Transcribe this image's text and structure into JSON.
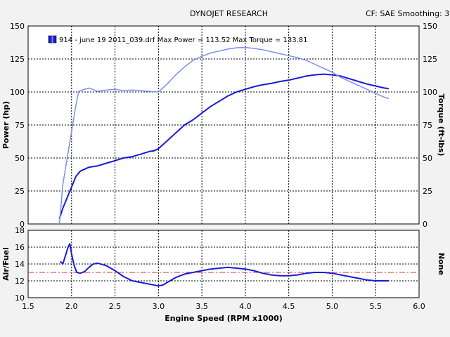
{
  "header": {
    "title": "DYNOJET RESEARCH",
    "settings": "CF: SAE  Smoothing: 3"
  },
  "legend": {
    "text": "914 - june 19 2011_039.drf Max Power = 113.52 Max Torque = 133.81"
  },
  "colors": {
    "background": "#f2f2f2",
    "plot_background": "#ffffff",
    "power_line": "#1a1ad4",
    "torque_line": "#7c8ef0",
    "air_fuel_line": "#1a1ad4",
    "reference_line": "#e03030"
  },
  "chart_data": [
    {
      "type": "line",
      "xlabel": "Engine Speed (RPM x1000)",
      "ylabel": "Power (hp)",
      "y2label": "Torque (ft-lbs)",
      "xlim": [
        1.5,
        6.0
      ],
      "ylim": [
        0,
        150
      ],
      "y2lim": [
        0,
        150
      ],
      "x_ticks": [
        "1.5",
        "2.0",
        "2.5",
        "3.0",
        "3.5",
        "4.0",
        "4.5",
        "5.0",
        "5.5",
        "6.0"
      ],
      "y_ticks": [
        "0",
        "25",
        "50",
        "75",
        "100",
        "125",
        "150"
      ],
      "grid": true,
      "legend_position": "top-left",
      "series": [
        {
          "name": "Max Power = 113.52",
          "axis": "left",
          "x": [
            1.86,
            1.9,
            1.95,
            2.0,
            2.05,
            2.1,
            2.2,
            2.3,
            2.4,
            2.5,
            2.6,
            2.7,
            2.8,
            2.9,
            2.95,
            3.0,
            3.1,
            3.2,
            3.3,
            3.4,
            3.5,
            3.6,
            3.7,
            3.8,
            3.9,
            4.0,
            4.1,
            4.2,
            4.3,
            4.4,
            4.5,
            4.6,
            4.7,
            4.8,
            4.9,
            5.0,
            5.1,
            5.2,
            5.3,
            5.4,
            5.5,
            5.6,
            5.65
          ],
          "values": [
            4,
            12,
            20,
            28,
            36,
            40,
            43,
            44,
            46,
            48,
            50,
            51,
            53,
            55,
            55.5,
            57,
            63,
            69,
            75,
            79,
            84,
            89,
            93,
            97,
            100,
            102,
            104,
            105.5,
            106.5,
            108,
            109,
            110.5,
            112,
            113,
            113.5,
            113,
            112,
            110,
            108,
            106,
            104.5,
            103,
            102.5
          ]
        },
        {
          "name": "Max Torque = 133.81",
          "axis": "right",
          "x": [
            1.86,
            1.9,
            1.95,
            2.0,
            2.05,
            2.08,
            2.1,
            2.2,
            2.3,
            2.4,
            2.5,
            2.6,
            2.7,
            2.8,
            2.9,
            3.0,
            3.1,
            3.2,
            3.3,
            3.4,
            3.5,
            3.6,
            3.7,
            3.8,
            3.9,
            4.0,
            4.1,
            4.2,
            4.3,
            4.4,
            4.5,
            4.6,
            4.7,
            4.8,
            4.9,
            5.0,
            5.1,
            5.2,
            5.3,
            5.4,
            5.5,
            5.6,
            5.65
          ],
          "values": [
            0,
            30,
            50,
            70,
            90,
            100,
            101,
            103,
            100.5,
            101.5,
            102,
            101,
            101.5,
            101,
            100.5,
            100,
            106,
            113,
            119,
            124,
            127,
            129.5,
            131,
            132.5,
            133.5,
            133.8,
            133,
            132,
            130.5,
            129,
            127.5,
            126,
            124,
            121,
            118,
            115,
            111,
            108,
            105,
            102,
            99,
            96,
            95
          ]
        }
      ]
    },
    {
      "type": "line",
      "xlabel": "Engine Speed (RPM x1000)",
      "ylabel": "Air/Fuel",
      "y2label": "None",
      "xlim": [
        1.5,
        6.0
      ],
      "ylim": [
        10,
        18
      ],
      "x_ticks": [
        "1.5",
        "2.0",
        "2.5",
        "3.0",
        "3.5",
        "4.0",
        "4.5",
        "5.0",
        "5.5",
        "6.0"
      ],
      "y_ticks": [
        "10",
        "12",
        "14",
        "16",
        "18"
      ],
      "grid": true,
      "reference_line": 13.0,
      "series": [
        {
          "name": "Air/Fuel",
          "x": [
            1.87,
            1.9,
            1.93,
            1.96,
            1.98,
            2.0,
            2.03,
            2.06,
            2.1,
            2.15,
            2.2,
            2.25,
            2.3,
            2.4,
            2.5,
            2.6,
            2.7,
            2.8,
            2.9,
            3.0,
            3.05,
            3.1,
            3.2,
            3.3,
            3.4,
            3.5,
            3.6,
            3.7,
            3.8,
            3.9,
            4.0,
            4.1,
            4.2,
            4.3,
            4.4,
            4.5,
            4.6,
            4.7,
            4.8,
            4.9,
            5.0,
            5.1,
            5.2,
            5.3,
            5.4,
            5.5,
            5.6,
            5.65
          ],
          "values": [
            14.3,
            14.0,
            15.0,
            16.0,
            16.4,
            15.2,
            13.8,
            13.0,
            12.9,
            13.1,
            13.6,
            14.0,
            14.1,
            13.8,
            13.2,
            12.5,
            12.0,
            11.8,
            11.6,
            11.4,
            11.5,
            11.8,
            12.4,
            12.8,
            13.0,
            13.2,
            13.4,
            13.5,
            13.6,
            13.5,
            13.4,
            13.2,
            12.9,
            12.7,
            12.6,
            12.6,
            12.7,
            12.9,
            13.0,
            13.0,
            12.9,
            12.7,
            12.5,
            12.3,
            12.1,
            12.0,
            12.0,
            12.0
          ]
        }
      ]
    }
  ]
}
